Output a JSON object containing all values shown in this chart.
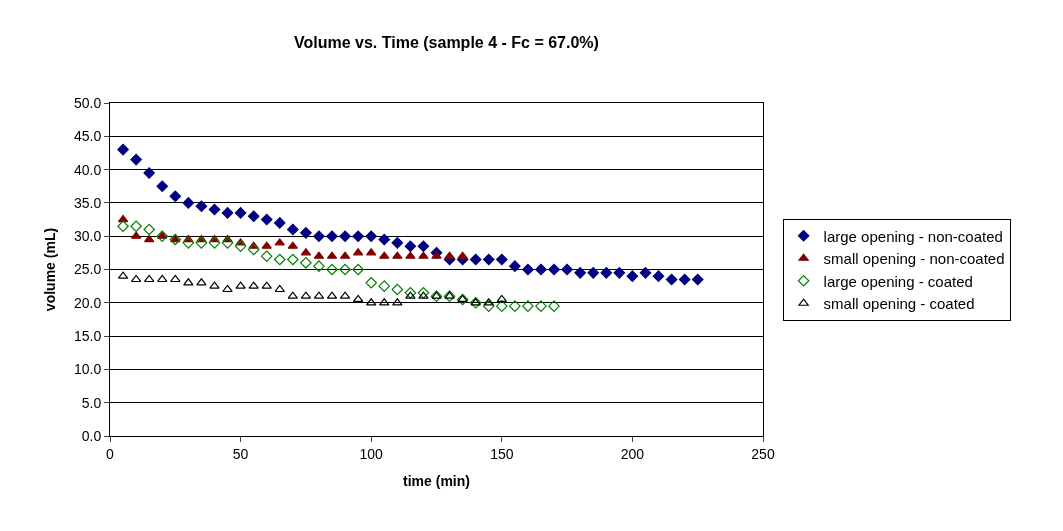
{
  "chart_data": {
    "type": "scatter",
    "title": "Volume vs. Time (sample 4 - Fc = 67.0%)",
    "xlabel": "time (min)",
    "ylabel": "volume (mL)",
    "xlim": [
      0,
      250
    ],
    "xticks": [
      0,
      50,
      100,
      150,
      200,
      250
    ],
    "ylim": [
      0,
      50
    ],
    "yticks": [
      {
        "value": 0,
        "label": "0.0"
      },
      {
        "value": 5,
        "label": "5.0"
      },
      {
        "value": 10,
        "label": "10.0"
      },
      {
        "value": 15,
        "label": "15.0"
      },
      {
        "value": 20,
        "label": "20.0"
      },
      {
        "value": 25,
        "label": "25.0"
      },
      {
        "value": 30,
        "label": "30.0"
      },
      {
        "value": 35,
        "label": "35.0"
      },
      {
        "value": 40,
        "label": "40.0"
      },
      {
        "value": 45,
        "label": "45.0"
      },
      {
        "value": 50,
        "label": "50.0"
      }
    ],
    "grid": "y",
    "legend": "right",
    "series": [
      {
        "name": "large opening - non-coated",
        "color": "#000080",
        "marker": "diamond",
        "x": [
          5,
          10,
          15,
          20,
          25,
          30,
          35,
          40,
          45,
          50,
          55,
          60,
          65,
          70,
          75,
          80,
          85,
          90,
          95,
          100,
          105,
          110,
          115,
          120,
          125,
          130,
          135,
          140,
          145,
          150,
          155,
          160,
          165,
          170,
          175,
          180,
          185,
          190,
          195,
          200,
          205,
          210,
          215,
          220,
          225
        ],
        "values": [
          43,
          41.5,
          39.5,
          37.5,
          36,
          35,
          34.5,
          34,
          33.5,
          33.5,
          33,
          32.5,
          32,
          31,
          30.5,
          30,
          30,
          30,
          30,
          30,
          29.5,
          29,
          28.5,
          28.5,
          27.5,
          26.5,
          26.5,
          26.5,
          26.5,
          26.5,
          25.5,
          25,
          25,
          25,
          25,
          24.5,
          24.5,
          24.5,
          24.5,
          24,
          24.5,
          24,
          23.5,
          23.5,
          23.5
        ]
      },
      {
        "name": "small opening - non-coated",
        "color": "#800000",
        "marker": "triangle",
        "x": [
          5,
          10,
          15,
          20,
          25,
          30,
          35,
          40,
          45,
          50,
          55,
          60,
          65,
          70,
          75,
          80,
          85,
          90,
          95,
          100,
          105,
          110,
          115,
          120,
          125,
          130,
          135
        ],
        "values": [
          32.5,
          30,
          29.5,
          30,
          29.5,
          29.5,
          29.5,
          29.5,
          29.5,
          29,
          28.5,
          28.5,
          29,
          28.5,
          27.5,
          27,
          27,
          27,
          27.5,
          27.5,
          27,
          27,
          27,
          27,
          27,
          27,
          27
        ]
      },
      {
        "name": "large opening - coated",
        "color": "#008000",
        "marker": "diamond-open",
        "x": [
          5,
          10,
          15,
          20,
          25,
          30,
          35,
          40,
          45,
          50,
          55,
          60,
          65,
          70,
          75,
          80,
          85,
          90,
          95,
          100,
          105,
          110,
          115,
          120,
          125,
          130,
          135,
          140,
          145,
          150,
          155,
          160,
          165,
          170
        ],
        "values": [
          31.5,
          31.5,
          31,
          30,
          29.5,
          29,
          29,
          29,
          29,
          28.5,
          28,
          27,
          26.5,
          26.5,
          26,
          25.5,
          25,
          25,
          25,
          23,
          22.5,
          22,
          21.5,
          21.5,
          21,
          21,
          20.5,
          20,
          19.5,
          19.5,
          19.5,
          19.5,
          19.5,
          19.5
        ]
      },
      {
        "name": "small opening - coated",
        "color": "#000000",
        "marker": "triangle-open",
        "x": [
          5,
          10,
          15,
          20,
          25,
          30,
          35,
          40,
          45,
          50,
          55,
          60,
          65,
          70,
          75,
          80,
          85,
          90,
          95,
          100,
          105,
          110,
          115,
          120,
          125,
          130,
          135,
          140,
          145,
          150
        ],
        "values": [
          24,
          23.5,
          23.5,
          23.5,
          23.5,
          23,
          23,
          22.5,
          22,
          22.5,
          22.5,
          22.5,
          22,
          21,
          21,
          21,
          21,
          21,
          20.5,
          20,
          20,
          20,
          21,
          21,
          21,
          21,
          20.5,
          20,
          20,
          20.5
        ]
      }
    ]
  }
}
